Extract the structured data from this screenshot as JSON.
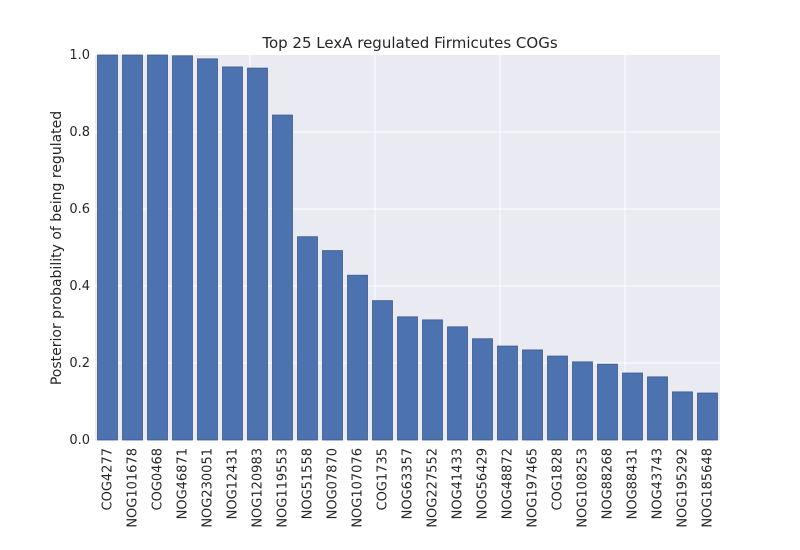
{
  "chart_data": {
    "type": "bar",
    "title": "Top 25 LexA regulated Firmicutes COGs",
    "xlabel": "",
    "ylabel": "Posterior probability of being regulated",
    "ylim": [
      0,
      1.0
    ],
    "yticks": [
      "0.0",
      "0.2",
      "0.4",
      "0.6",
      "0.8",
      "1.0"
    ],
    "grid": true,
    "bar_color": "#4c72b0",
    "plot_background": "#eaeaf2",
    "categories": [
      "COG4277",
      "NOG101678",
      "COG0468",
      "NOG46871",
      "NOG230051",
      "NOG12431",
      "NOG120983",
      "NOG119553",
      "NOG51558",
      "NOG07870",
      "NOG107076",
      "COG1735",
      "NOG63357",
      "NOG227552",
      "NOG41433",
      "NOG56429",
      "NOG48872",
      "NOG197465",
      "COG1828",
      "NOG108253",
      "NOG88268",
      "NOG88431",
      "NOG43743",
      "NOG195292",
      "NOG185648"
    ],
    "values": [
      1.0,
      1.0,
      1.0,
      0.998,
      0.99,
      0.969,
      0.966,
      0.844,
      0.528,
      0.492,
      0.428,
      0.362,
      0.32,
      0.312,
      0.294,
      0.263,
      0.244,
      0.234,
      0.218,
      0.203,
      0.197,
      0.174,
      0.164,
      0.125,
      0.122
    ]
  }
}
